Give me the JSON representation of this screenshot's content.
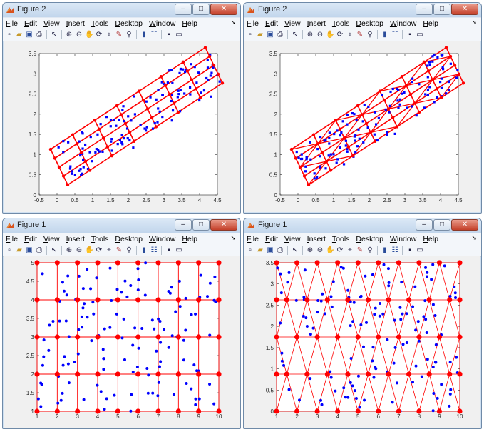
{
  "windows": [
    {
      "title": "Figure 2",
      "menus": [
        "File",
        "Edit",
        "View",
        "Insert",
        "Tools",
        "Desktop",
        "Window",
        "Help"
      ],
      "plot": {
        "kind": "rect-rotated",
        "xlim": [
          -0.5,
          4.5
        ],
        "ylim": [
          0,
          3.5
        ],
        "xticks": [
          "-0.5",
          "0",
          "0.5",
          "1",
          "1.5",
          "2",
          "2.5",
          "3",
          "3.5",
          "4",
          "4.5"
        ],
        "yticks": [
          "0",
          "0.5",
          "1",
          "1.5",
          "2",
          "2.5",
          "3",
          "3.5"
        ],
        "marker": "square"
      }
    },
    {
      "title": "Figure 2",
      "menus": [
        "File",
        "Edit",
        "View",
        "Insert",
        "Tools",
        "Desktop",
        "Window",
        "Help"
      ],
      "plot": {
        "kind": "tri-rotated",
        "xlim": [
          -0.5,
          4.5
        ],
        "ylim": [
          0,
          3.5
        ],
        "xticks": [
          "-0.5",
          "0",
          "0.5",
          "1",
          "1.5",
          "2",
          "2.5",
          "3",
          "3.5",
          "4",
          "4.5"
        ],
        "yticks": [
          "0",
          "0.5",
          "1",
          "1.5",
          "2",
          "2.5",
          "3",
          "3.5"
        ],
        "marker": "square"
      }
    },
    {
      "title": "Figure 1",
      "menus": [
        "File",
        "Edit",
        "View",
        "Insert",
        "Tools",
        "Desktop",
        "Window",
        "Help"
      ],
      "plot": {
        "kind": "rect-grid",
        "xlim": [
          1,
          10
        ],
        "ylim": [
          1,
          5
        ],
        "xticks": [
          "1",
          "2",
          "3",
          "4",
          "5",
          "6",
          "7",
          "8",
          "9",
          "10"
        ],
        "yticks": [
          "1",
          "1.5",
          "2",
          "2.5",
          "3",
          "3.5",
          "4",
          "4.5",
          "5"
        ],
        "marker": "circle"
      }
    },
    {
      "title": "Figure 1",
      "menus": [
        "File",
        "Edit",
        "View",
        "Insert",
        "Tools",
        "Desktop",
        "Window",
        "Help"
      ],
      "plot": {
        "kind": "tri-grid",
        "xlim": [
          1,
          10
        ],
        "ylim": [
          0,
          3.5
        ],
        "xticks": [
          "1",
          "2",
          "3",
          "4",
          "5",
          "6",
          "7",
          "8",
          "9",
          "10"
        ],
        "yticks": [
          "0",
          "0.5",
          "1",
          "1.5",
          "2",
          "2.5",
          "3",
          "3.5"
        ],
        "marker": "circle"
      }
    }
  ],
  "controls": {
    "minimize": "–",
    "maximize": "□",
    "close": "✕"
  },
  "colors": {
    "grid": "#ff0000",
    "nodes": "#ff0000",
    "points": "#0000ff"
  },
  "toolbar_icons": [
    "new-figure-icon",
    "open-file-icon",
    "save-icon",
    "print-icon",
    "pointer-icon",
    "zoom-in-icon",
    "zoom-out-icon",
    "pan-icon",
    "rotate-3d-icon",
    "data-cursor-icon",
    "brush-icon",
    "link-plot-icon",
    "colorbar-icon",
    "legend-icon",
    "hide-plot-tools-icon",
    "show-plot-tools-icon"
  ]
}
